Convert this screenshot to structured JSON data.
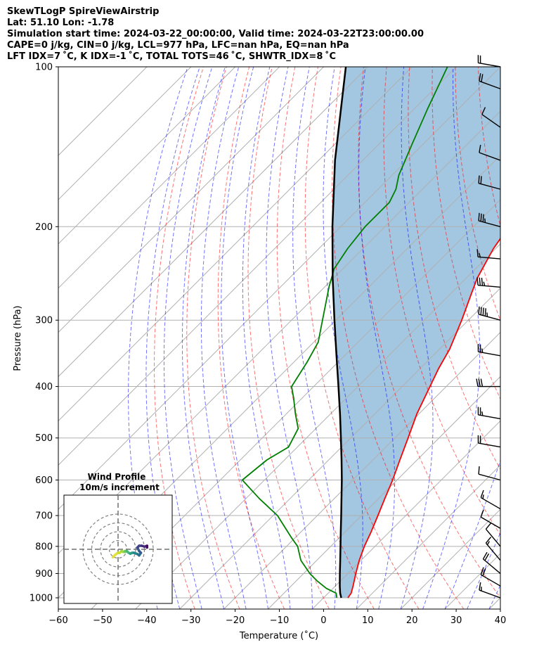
{
  "header": {
    "title": "SkewTLogP SpireViewAirstrip",
    "location": "Lat: 51.10   Lon: -1.78",
    "times": "Simulation start time: 2024-03-22_00:00:00, Valid time: 2024-03-22T23:00:00.00",
    "indices1": "CAPE=0 j/kg, CIN=0 j/kg, LCL=977 hPa, LFC=nan hPa, EQ=nan hPa",
    "indices2": "LFT IDX=7 ˚C, K IDX=-1 ˚C, TOTAL TOTS=46 ˚C, SHWTR_IDX=8 ˚C"
  },
  "chart_data": {
    "type": "line",
    "subtype": "skew-t log-p",
    "xlabel": "Temperature (˚C)",
    "ylabel": "Pressure (hPa)",
    "xlim": [
      -60,
      40
    ],
    "ylim": [
      1050,
      100
    ],
    "xticks": [
      -60,
      -50,
      -40,
      -30,
      -20,
      -10,
      0,
      10,
      20,
      30,
      40
    ],
    "yticks": [
      100,
      200,
      300,
      400,
      500,
      600,
      700,
      800,
      900,
      1000
    ],
    "series": [
      {
        "name": "temperature",
        "color": "#ff0000",
        "p": [
          1000,
          980,
          950,
          900,
          850,
          800,
          750,
          700,
          650,
          600,
          550,
          500,
          450,
          400,
          370,
          340,
          300,
          270,
          250,
          220,
          200,
          180,
          160,
          140,
          120,
          100
        ],
        "t": [
          5.5,
          5.2,
          4.0,
          1.8,
          -0.4,
          -2.4,
          -4.2,
          -6.3,
          -8.6,
          -11.0,
          -13.9,
          -17.0,
          -20.5,
          -23.7,
          -25.8,
          -27.7,
          -31.5,
          -35.0,
          -37.5,
          -40.5,
          -42.0,
          -42.5,
          -44.5,
          -48.0,
          -54.0,
          -60.0
        ]
      },
      {
        "name": "dewpoint",
        "color": "#008000",
        "p": [
          1000,
          980,
          960,
          930,
          900,
          850,
          800,
          770,
          700,
          650,
          600,
          550,
          520,
          480,
          450,
          420,
          400,
          360,
          330,
          300,
          260,
          240,
          220,
          200,
          180,
          170,
          160,
          140,
          120,
          100
        ],
        "t": [
          3.0,
          1.8,
          -1.5,
          -5.2,
          -8.6,
          -13.6,
          -17.5,
          -20.9,
          -29.0,
          -37.0,
          -45.0,
          -44.0,
          -42.0,
          -44.0,
          -48.0,
          -52.0,
          -55.0,
          -57.0,
          -59.0,
          -63.0,
          -69.0,
          -72.0,
          -73.5,
          -74.5,
          -74.5,
          -76.0,
          -78.5,
          -82.5,
          -87.0,
          -92.0
        ]
      },
      {
        "name": "parcel",
        "color": "#000000",
        "p": [
          1000,
          980,
          950,
          900,
          850,
          800,
          750,
          700,
          650,
          600,
          550,
          500,
          450,
          400,
          350,
          300,
          250,
          200,
          150,
          100
        ],
        "t": [
          4.0,
          2.7,
          1.0,
          -1.8,
          -4.7,
          -7.8,
          -11.1,
          -14.6,
          -18.4,
          -22.5,
          -27.1,
          -32.2,
          -37.9,
          -44.4,
          -51.8,
          -60.3,
          -70.2,
          -81.9,
          -96.3,
          -115.0
        ]
      }
    ],
    "wind_barbs": [
      {
        "p": 100,
        "dir": 280,
        "speed_kt": 20
      },
      {
        "p": 110,
        "dir": 290,
        "speed_kt": 20
      },
      {
        "p": 130,
        "dir": 305,
        "speed_kt": 10
      },
      {
        "p": 150,
        "dir": 290,
        "speed_kt": 10
      },
      {
        "p": 170,
        "dir": 285,
        "speed_kt": 20
      },
      {
        "p": 200,
        "dir": 285,
        "speed_kt": 35
      },
      {
        "p": 230,
        "dir": 275,
        "speed_kt": 15
      },
      {
        "p": 260,
        "dir": 275,
        "speed_kt": 35
      },
      {
        "p": 300,
        "dir": 285,
        "speed_kt": 45
      },
      {
        "p": 350,
        "dir": 280,
        "speed_kt": 25
      },
      {
        "p": 400,
        "dir": 270,
        "speed_kt": 30
      },
      {
        "p": 460,
        "dir": 280,
        "speed_kt": 25
      },
      {
        "p": 520,
        "dir": 280,
        "speed_kt": 20
      },
      {
        "p": 600,
        "dir": 285,
        "speed_kt": 10
      },
      {
        "p": 680,
        "dir": 300,
        "speed_kt": 15
      },
      {
        "p": 740,
        "dir": 300,
        "speed_kt": 10
      },
      {
        "p": 800,
        "dir": 320,
        "speed_kt": 10
      },
      {
        "p": 850,
        "dir": 320,
        "speed_kt": 15
      },
      {
        "p": 900,
        "dir": 310,
        "speed_kt": 20
      },
      {
        "p": 950,
        "dir": 300,
        "speed_kt": 20
      },
      {
        "p": 1000,
        "dir": 290,
        "speed_kt": 15
      }
    ],
    "hodograph": {
      "title": "Wind Profile",
      "subtitle": "10m/s increment",
      "rings_ms": [
        10,
        20,
        30,
        40
      ],
      "u_ms": [
        -6,
        -3,
        0,
        2,
        4,
        6,
        8,
        8,
        10,
        12,
        14,
        16,
        18,
        21,
        23,
        24,
        26,
        24,
        22,
        24,
        27,
        30,
        33,
        33
      ],
      "v_ms": [
        -9,
        -6,
        -4,
        -4,
        -2,
        -3,
        -2,
        -3,
        -2,
        -4,
        -5,
        -4,
        -4,
        -5,
        -6,
        -7,
        -4,
        -2,
        2,
        4,
        4,
        3,
        4,
        2
      ]
    }
  }
}
